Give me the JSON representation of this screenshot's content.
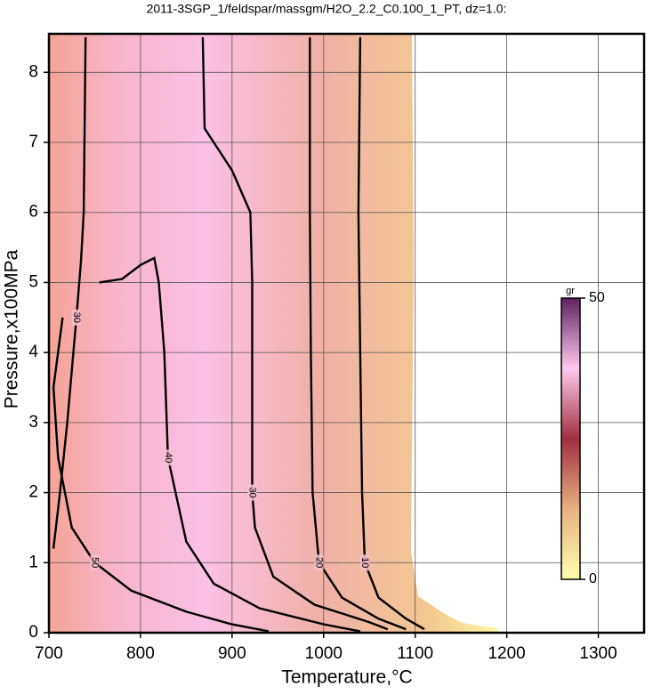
{
  "chart_data": {
    "type": "contour",
    "title": "2011-3SGP_1/feldspar/massgm/H2O_2.2_C0.100_1_PT, dz=1.0:",
    "x_label": "Temperature,°C",
    "y_label": "Pressure,x100MPa",
    "xlim": [
      700,
      1350
    ],
    "ylim": [
      0,
      8.55
    ],
    "xticks": [
      700,
      800,
      900,
      1000,
      1100,
      1200,
      1300
    ],
    "yticks": [
      0,
      1,
      2,
      3,
      4,
      5,
      6,
      7,
      8
    ],
    "grid": true,
    "line_color": "#000000",
    "contours": [
      {
        "level": 10,
        "x": [
          1040,
          1038,
          1040,
          1042,
          1045,
          1060,
          1090,
          1110
        ],
        "y": [
          8.5,
          6,
          4,
          2,
          1,
          0.5,
          0.2,
          0.05
        ]
      },
      {
        "level": 20,
        "x": [
          985,
          985,
          986,
          988,
          995,
          1020,
          1060,
          1090
        ],
        "y": [
          8.5,
          6,
          4,
          2,
          1,
          0.5,
          0.2,
          0.05
        ]
      },
      {
        "level": 30,
        "x": [
          868,
          870,
          900,
          920,
          922,
          922,
          922,
          925,
          945,
          990,
          1050,
          1070
        ],
        "y": [
          8.5,
          7.2,
          6.6,
          6,
          5,
          3.5,
          2,
          1.5,
          0.8,
          0.4,
          0.15,
          0.05
        ]
      },
      {
        "level": 40,
        "x": [
          755,
          780,
          800,
          815,
          820,
          826,
          830,
          850,
          880,
          930,
          1000,
          1040
        ],
        "y": [
          5.0,
          5.05,
          5.25,
          5.35,
          5.0,
          4,
          2.5,
          1.3,
          0.7,
          0.35,
          0.12,
          0.02
        ]
      },
      {
        "level": 50,
        "x": [
          715,
          705,
          710,
          725,
          750,
          790,
          850,
          900,
          940
        ],
        "y": [
          4.5,
          3.5,
          2.5,
          1.5,
          1,
          0.6,
          0.3,
          0.12,
          0.02
        ]
      },
      {
        "level": 30,
        "x": [
          740,
          738,
          735,
          730,
          720,
          712,
          705
        ],
        "y": [
          8.5,
          6,
          5.3,
          4.5,
          3,
          2,
          1.2
        ]
      }
    ],
    "colorbar": {
      "label": "gr",
      "ticks": [
        0,
        50
      ],
      "colors": [
        "#ffffb0",
        "#e8b080",
        "#a03040",
        "#ffc8ec",
        "#602060"
      ]
    }
  }
}
